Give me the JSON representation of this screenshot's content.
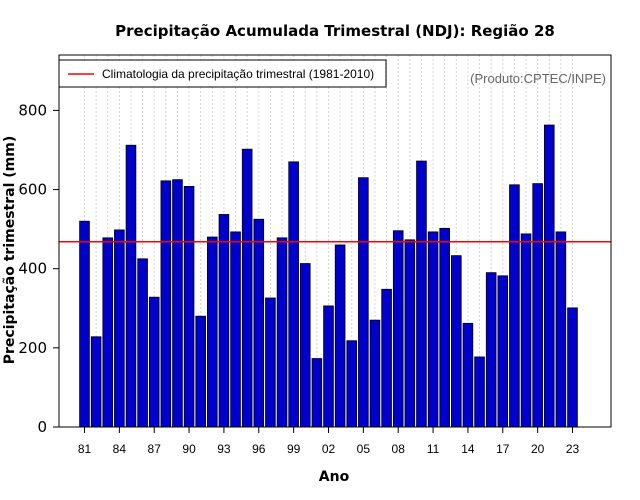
{
  "chart_data": {
    "type": "bar",
    "title": "Precipitação Acumulada Trimestral (NDJ): Região 28",
    "xlabel": "Ano",
    "ylabel": "Precipitação trimestral (mm)",
    "ylim": [
      0,
      940
    ],
    "yticks": [
      0,
      200,
      400,
      600,
      800
    ],
    "categories": [
      "81",
      "82",
      "83",
      "84",
      "85",
      "86",
      "87",
      "88",
      "89",
      "90",
      "91",
      "92",
      "93",
      "94",
      "95",
      "96",
      "97",
      "98",
      "99",
      "00",
      "01",
      "02",
      "03",
      "04",
      "05",
      "06",
      "07",
      "08",
      "09",
      "10",
      "11",
      "12",
      "13",
      "14",
      "15",
      "16",
      "17",
      "18",
      "19",
      "20",
      "21",
      "22",
      "23"
    ],
    "xtick_labels": [
      "81",
      "84",
      "87",
      "90",
      "93",
      "96",
      "99",
      "02",
      "05",
      "08",
      "11",
      "14",
      "17",
      "20",
      "23"
    ],
    "values": [
      520,
      228,
      478,
      498,
      712,
      425,
      328,
      622,
      625,
      608,
      280,
      480,
      537,
      493,
      702,
      525,
      326,
      478,
      670,
      413,
      173,
      306,
      460,
      218,
      630,
      270,
      348,
      496,
      473,
      672,
      493,
      502,
      433,
      262,
      177,
      390,
      382,
      612,
      488,
      615,
      763,
      493,
      301
    ],
    "climatology": 468,
    "legend": {
      "position": "top-left",
      "entries": [
        "Climatologia da precipitação trimestral (1981-2010)"
      ]
    },
    "credit": "(Produto:CPTEC/INPE)",
    "grid": "vertical dotted",
    "colors": {
      "bar": "#0000cd",
      "bar_edge": "#000000",
      "climatology": "#ff0000",
      "grid": "#d3d3d3",
      "credit": "#666666"
    }
  }
}
